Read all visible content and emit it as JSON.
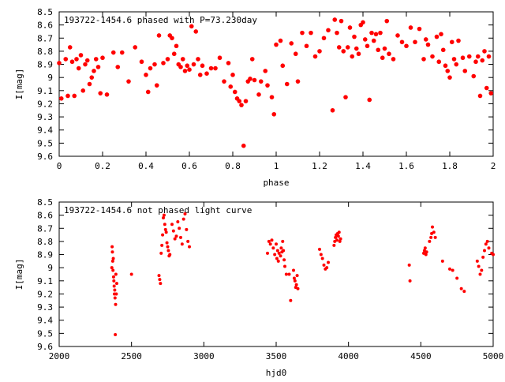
{
  "chart_data": [
    {
      "type": "scatter",
      "title": "193722-1454.6 phased with P=73.230day",
      "xlabel": "phase",
      "ylabel": "I[mag]",
      "xlim": [
        0,
        2
      ],
      "ylim": [
        8.5,
        9.6
      ],
      "y_inverted": true,
      "grid": false,
      "marker_color": "#ff0000",
      "xticks": [
        "0",
        "0.2",
        "0.4",
        "0.6",
        "0.8",
        "1",
        "1.2",
        "1.4",
        "1.6",
        "1.8",
        "2"
      ],
      "yticks": [
        "8.5",
        "8.6",
        "8.7",
        "8.8",
        "8.9",
        "9",
        "9.1",
        "9.2",
        "9.3",
        "9.4",
        "9.5",
        "9.6"
      ],
      "points": [
        [
          0.0,
          8.89
        ],
        [
          0.01,
          9.16
        ],
        [
          0.03,
          8.86
        ],
        [
          0.04,
          9.14
        ],
        [
          0.05,
          8.77
        ],
        [
          0.06,
          8.88
        ],
        [
          0.07,
          9.14
        ],
        [
          0.08,
          8.86
        ],
        [
          0.09,
          8.93
        ],
        [
          0.1,
          8.83
        ],
        [
          0.11,
          9.1
        ],
        [
          0.12,
          8.9
        ],
        [
          0.13,
          8.87
        ],
        [
          0.14,
          9.05
        ],
        [
          0.15,
          9.0
        ],
        [
          0.16,
          8.95
        ],
        [
          0.17,
          8.86
        ],
        [
          0.18,
          8.92
        ],
        [
          0.19,
          9.12
        ],
        [
          0.2,
          8.85
        ],
        [
          0.22,
          9.13
        ],
        [
          0.25,
          8.81
        ],
        [
          0.27,
          8.92
        ],
        [
          0.29,
          8.81
        ],
        [
          0.32,
          9.03
        ],
        [
          0.35,
          8.77
        ],
        [
          0.38,
          8.88
        ],
        [
          0.4,
          8.98
        ],
        [
          0.41,
          9.11
        ],
        [
          0.42,
          8.93
        ],
        [
          0.44,
          8.9
        ],
        [
          0.45,
          9.06
        ],
        [
          0.46,
          8.68
        ],
        [
          0.48,
          8.89
        ],
        [
          0.5,
          8.86
        ],
        [
          0.51,
          8.68
        ],
        [
          0.52,
          8.7
        ],
        [
          0.53,
          8.82
        ],
        [
          0.54,
          8.76
        ],
        [
          0.55,
          8.9
        ],
        [
          0.56,
          8.92
        ],
        [
          0.57,
          8.86
        ],
        [
          0.58,
          8.95
        ],
        [
          0.59,
          8.91
        ],
        [
          0.6,
          8.94
        ],
        [
          0.61,
          8.61
        ],
        [
          0.62,
          8.9
        ],
        [
          0.63,
          8.65
        ],
        [
          0.64,
          8.86
        ],
        [
          0.65,
          8.98
        ],
        [
          0.66,
          8.91
        ],
        [
          0.68,
          8.97
        ],
        [
          0.7,
          8.93
        ],
        [
          0.72,
          8.93
        ],
        [
          0.74,
          8.85
        ],
        [
          0.76,
          9.03
        ],
        [
          0.78,
          8.89
        ],
        [
          0.79,
          9.07
        ],
        [
          0.8,
          8.98
        ],
        [
          0.81,
          9.11
        ],
        [
          0.82,
          9.16
        ],
        [
          0.83,
          9.18
        ],
        [
          0.84,
          9.21
        ],
        [
          0.85,
          9.52
        ],
        [
          0.86,
          9.18
        ],
        [
          0.87,
          9.03
        ],
        [
          0.88,
          9.01
        ],
        [
          0.89,
          8.86
        ],
        [
          0.9,
          9.02
        ],
        [
          0.92,
          9.13
        ],
        [
          0.93,
          9.03
        ],
        [
          0.95,
          8.95
        ],
        [
          0.96,
          9.06
        ],
        [
          0.98,
          9.15
        ],
        [
          0.99,
          9.28
        ],
        [
          1.0,
          8.75
        ],
        [
          1.02,
          8.72
        ],
        [
          1.03,
          8.91
        ],
        [
          1.05,
          9.05
        ],
        [
          1.07,
          8.74
        ],
        [
          1.09,
          8.82
        ],
        [
          1.1,
          9.03
        ],
        [
          1.12,
          8.66
        ],
        [
          1.14,
          8.76
        ],
        [
          1.16,
          8.66
        ],
        [
          1.18,
          8.84
        ],
        [
          1.2,
          8.8
        ],
        [
          1.22,
          8.7
        ],
        [
          1.24,
          8.64
        ],
        [
          1.26,
          9.25
        ],
        [
          1.27,
          8.56
        ],
        [
          1.28,
          8.66
        ],
        [
          1.29,
          8.77
        ],
        [
          1.3,
          8.57
        ],
        [
          1.31,
          8.8
        ],
        [
          1.32,
          9.15
        ],
        [
          1.33,
          8.77
        ],
        [
          1.34,
          8.62
        ],
        [
          1.35,
          8.84
        ],
        [
          1.36,
          8.69
        ],
        [
          1.37,
          8.78
        ],
        [
          1.38,
          8.82
        ],
        [
          1.39,
          8.6
        ],
        [
          1.4,
          8.58
        ],
        [
          1.41,
          8.71
        ],
        [
          1.42,
          8.76
        ],
        [
          1.43,
          9.17
        ],
        [
          1.44,
          8.66
        ],
        [
          1.45,
          8.72
        ],
        [
          1.46,
          8.67
        ],
        [
          1.47,
          8.79
        ],
        [
          1.48,
          8.66
        ],
        [
          1.49,
          8.85
        ],
        [
          1.5,
          8.78
        ],
        [
          1.51,
          8.57
        ],
        [
          1.52,
          8.82
        ],
        [
          1.54,
          8.86
        ],
        [
          1.56,
          8.68
        ],
        [
          1.58,
          8.73
        ],
        [
          1.6,
          8.76
        ],
        [
          1.62,
          8.62
        ],
        [
          1.64,
          8.73
        ],
        [
          1.66,
          8.63
        ],
        [
          1.68,
          8.86
        ],
        [
          1.69,
          8.71
        ],
        [
          1.7,
          8.75
        ],
        [
          1.72,
          8.84
        ],
        [
          1.74,
          8.69
        ],
        [
          1.75,
          8.88
        ],
        [
          1.76,
          8.67
        ],
        [
          1.77,
          8.79
        ],
        [
          1.78,
          8.91
        ],
        [
          1.79,
          8.95
        ],
        [
          1.8,
          9.0
        ],
        [
          1.81,
          8.73
        ],
        [
          1.82,
          8.86
        ],
        [
          1.83,
          8.9
        ],
        [
          1.84,
          8.72
        ],
        [
          1.86,
          8.85
        ],
        [
          1.87,
          8.95
        ],
        [
          1.89,
          8.84
        ],
        [
          1.91,
          8.99
        ],
        [
          1.92,
          8.88
        ],
        [
          1.93,
          8.84
        ],
        [
          1.94,
          9.14
        ],
        [
          1.95,
          8.87
        ],
        [
          1.96,
          8.8
        ],
        [
          1.97,
          9.08
        ],
        [
          1.98,
          8.84
        ],
        [
          1.99,
          9.12
        ]
      ]
    },
    {
      "type": "scatter",
      "title": "193722-1454.6 not phased light curve",
      "xlabel": "hjd0",
      "ylabel": "I[mag]",
      "xlim": [
        2000,
        5000
      ],
      "ylim": [
        8.5,
        9.6
      ],
      "y_inverted": true,
      "grid": false,
      "marker_color": "#ff0000",
      "xticks": [
        "2000",
        "2500",
        "3000",
        "3500",
        "4000",
        "4500",
        "5000"
      ],
      "yticks": [
        "8.5",
        "8.6",
        "8.7",
        "8.8",
        "8.9",
        "9",
        "9.1",
        "9.2",
        "9.3",
        "9.4",
        "9.5",
        "9.6"
      ],
      "points": [
        [
          2364,
          9.0
        ],
        [
          2366,
          8.84
        ],
        [
          2368,
          8.88
        ],
        [
          2370,
          8.95
        ],
        [
          2372,
          9.02
        ],
        [
          2374,
          8.93
        ],
        [
          2376,
          9.07
        ],
        [
          2378,
          9.1
        ],
        [
          2380,
          9.14
        ],
        [
          2382,
          9.2
        ],
        [
          2384,
          9.17
        ],
        [
          2386,
          9.23
        ],
        [
          2388,
          9.51
        ],
        [
          2390,
          9.28
        ],
        [
          2392,
          9.05
        ],
        [
          2395,
          9.2
        ],
        [
          2398,
          9.12
        ],
        [
          2500,
          9.05
        ],
        [
          2690,
          9.06
        ],
        [
          2695,
          9.09
        ],
        [
          2700,
          9.12
        ],
        [
          2705,
          8.89
        ],
        [
          2710,
          8.83
        ],
        [
          2715,
          8.75
        ],
        [
          2720,
          8.62
        ],
        [
          2725,
          8.6
        ],
        [
          2730,
          8.67
        ],
        [
          2735,
          8.71
        ],
        [
          2740,
          8.73
        ],
        [
          2745,
          8.81
        ],
        [
          2750,
          8.84
        ],
        [
          2755,
          8.87
        ],
        [
          2760,
          8.91
        ],
        [
          2765,
          8.9
        ],
        [
          2780,
          8.67
        ],
        [
          2790,
          8.72
        ],
        [
          2800,
          8.78
        ],
        [
          2810,
          8.76
        ],
        [
          2820,
          8.65
        ],
        [
          2830,
          8.7
        ],
        [
          2840,
          8.77
        ],
        [
          2850,
          8.82
        ],
        [
          2860,
          8.63
        ],
        [
          2870,
          8.59
        ],
        [
          2880,
          8.71
        ],
        [
          2890,
          8.8
        ],
        [
          2900,
          8.84
        ],
        [
          3440,
          8.89
        ],
        [
          3450,
          8.8
        ],
        [
          3460,
          8.82
        ],
        [
          3470,
          8.79
        ],
        [
          3480,
          8.85
        ],
        [
          3490,
          8.9
        ],
        [
          3500,
          8.82
        ],
        [
          3505,
          8.93
        ],
        [
          3510,
          8.87
        ],
        [
          3515,
          8.95
        ],
        [
          3520,
          8.89
        ],
        [
          3530,
          8.91
        ],
        [
          3535,
          8.85
        ],
        [
          3540,
          8.88
        ],
        [
          3545,
          8.8
        ],
        [
          3550,
          8.87
        ],
        [
          3555,
          8.94
        ],
        [
          3560,
          8.99
        ],
        [
          3570,
          9.05
        ],
        [
          3590,
          9.05
        ],
        [
          3600,
          9.25
        ],
        [
          3620,
          9.02
        ],
        [
          3625,
          9.08
        ],
        [
          3630,
          9.1
        ],
        [
          3635,
          9.15
        ],
        [
          3640,
          9.13
        ],
        [
          3645,
          9.06
        ],
        [
          3650,
          9.16
        ],
        [
          3800,
          8.86
        ],
        [
          3810,
          8.9
        ],
        [
          3820,
          8.93
        ],
        [
          3830,
          8.98
        ],
        [
          3840,
          9.01
        ],
        [
          3850,
          9.0
        ],
        [
          3860,
          8.96
        ],
        [
          3900,
          8.83
        ],
        [
          3905,
          8.8
        ],
        [
          3910,
          8.77
        ],
        [
          3915,
          8.75
        ],
        [
          3920,
          8.79
        ],
        [
          3925,
          8.74
        ],
        [
          3930,
          8.76
        ],
        [
          3935,
          8.73
        ],
        [
          3940,
          8.8
        ],
        [
          3945,
          8.78
        ],
        [
          4420,
          8.98
        ],
        [
          4425,
          9.1
        ],
        [
          4520,
          8.89
        ],
        [
          4525,
          8.87
        ],
        [
          4530,
          8.85
        ],
        [
          4535,
          8.9
        ],
        [
          4540,
          8.88
        ],
        [
          4560,
          8.8
        ],
        [
          4570,
          8.77
        ],
        [
          4575,
          8.74
        ],
        [
          4580,
          8.69
        ],
        [
          4590,
          8.73
        ],
        [
          4600,
          8.77
        ],
        [
          4650,
          8.95
        ],
        [
          4700,
          9.01
        ],
        [
          4720,
          9.02
        ],
        [
          4750,
          9.08
        ],
        [
          4780,
          9.16
        ],
        [
          4800,
          9.18
        ],
        [
          4890,
          8.95
        ],
        [
          4900,
          8.99
        ],
        [
          4910,
          9.05
        ],
        [
          4920,
          9.02
        ],
        [
          4930,
          8.92
        ],
        [
          4940,
          8.87
        ],
        [
          4950,
          8.82
        ],
        [
          4960,
          8.8
        ],
        [
          4970,
          8.85
        ],
        [
          4990,
          8.89
        ],
        [
          5000,
          8.9
        ]
      ]
    }
  ]
}
